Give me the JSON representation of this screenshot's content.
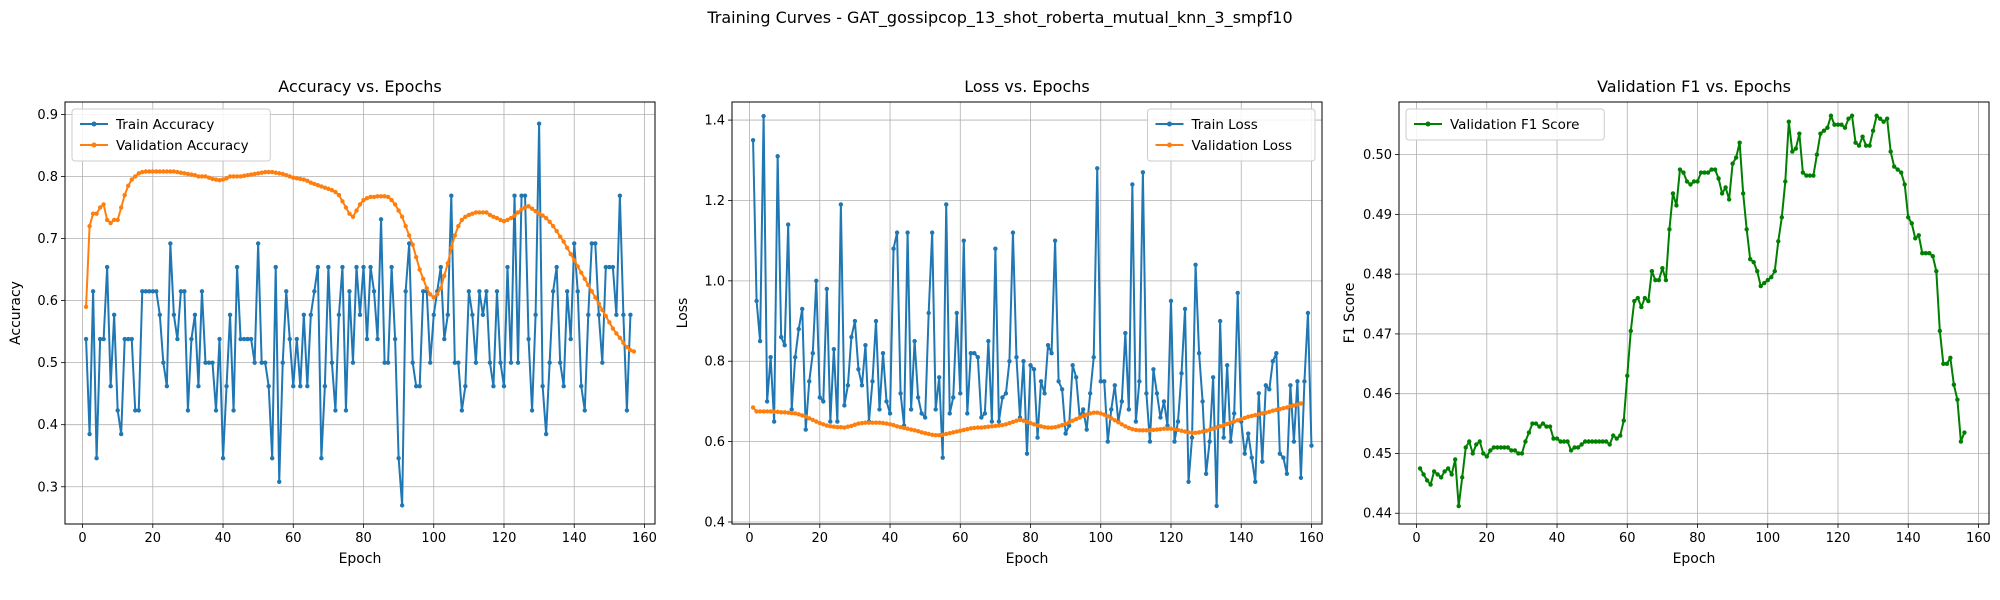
{
  "figure": {
    "title": "Training Curves - GAT_gossipcop_13_shot_roberta_mutual_knn_3_smpf10"
  },
  "colors": {
    "train": "#1f77b4",
    "val": "#ff7f0e",
    "f1": "#008000",
    "grid": "#b0b0b0"
  },
  "chart_data": [
    {
      "type": "line",
      "title": "Accuracy vs. Epochs",
      "xlabel": "Epoch",
      "ylabel": "Accuracy",
      "xlim": [
        -5,
        163
      ],
      "ylim": [
        0.24,
        0.92
      ],
      "xticks": [
        0,
        20,
        40,
        60,
        80,
        100,
        120,
        140,
        160
      ],
      "yticks": [
        0.3,
        0.4,
        0.5,
        0.6,
        0.7,
        0.8,
        0.9
      ],
      "ytick_decimals": 1,
      "grid": true,
      "legend": "top-left",
      "series": [
        {
          "name": "Train Accuracy",
          "color": "#1f77b4",
          "x_start": 1,
          "values": [
            0.538,
            0.385,
            0.615,
            0.346,
            0.538,
            0.538,
            0.654,
            0.462,
            0.577,
            0.423,
            0.385,
            0.538,
            0.538,
            0.538,
            0.423,
            0.423,
            0.615,
            0.615,
            0.615,
            0.615,
            0.615,
            0.577,
            0.5,
            0.462,
            0.692,
            0.577,
            0.538,
            0.615,
            0.615,
            0.423,
            0.538,
            0.577,
            0.462,
            0.615,
            0.5,
            0.5,
            0.5,
            0.423,
            0.538,
            0.346,
            0.462,
            0.577,
            0.423,
            0.654,
            0.538,
            0.538,
            0.538,
            0.538,
            0.5,
            0.692,
            0.5,
            0.5,
            0.462,
            0.346,
            0.654,
            0.308,
            0.5,
            0.615,
            0.538,
            0.462,
            0.538,
            0.462,
            0.577,
            0.462,
            0.577,
            0.615,
            0.654,
            0.346,
            0.462,
            0.654,
            0.5,
            0.423,
            0.577,
            0.654,
            0.423,
            0.615,
            0.5,
            0.654,
            0.577,
            0.654,
            0.538,
            0.654,
            0.615,
            0.538,
            0.731,
            0.5,
            0.5,
            0.654,
            0.538,
            0.346,
            0.27,
            0.615,
            0.692,
            0.5,
            0.462,
            0.462,
            0.615,
            0.615,
            0.5,
            0.577,
            0.615,
            0.654,
            0.538,
            0.577,
            0.769,
            0.5,
            0.5,
            0.423,
            0.462,
            0.615,
            0.577,
            0.5,
            0.615,
            0.577,
            0.615,
            0.5,
            0.462,
            0.615,
            0.5,
            0.462,
            0.654,
            0.5,
            0.769,
            0.5,
            0.769,
            0.769,
            0.538,
            0.423,
            0.577,
            0.885,
            0.462,
            0.385,
            0.5,
            0.615,
            0.654,
            0.5,
            0.462,
            0.615,
            0.538,
            0.692,
            0.615,
            0.462,
            0.423,
            0.577,
            0.692,
            0.692,
            0.577,
            0.5,
            0.654,
            0.654,
            0.654,
            0.577,
            0.769,
            0.577,
            0.423,
            0.577
          ]
        },
        {
          "name": "Validation Accuracy",
          "color": "#ff7f0e",
          "x_start": 1,
          "values": [
            0.59,
            0.72,
            0.74,
            0.74,
            0.75,
            0.755,
            0.73,
            0.725,
            0.73,
            0.73,
            0.75,
            0.77,
            0.785,
            0.795,
            0.8,
            0.805,
            0.807,
            0.808,
            0.808,
            0.808,
            0.808,
            0.808,
            0.808,
            0.808,
            0.808,
            0.808,
            0.807,
            0.806,
            0.805,
            0.804,
            0.803,
            0.802,
            0.8,
            0.8,
            0.8,
            0.798,
            0.796,
            0.795,
            0.794,
            0.795,
            0.797,
            0.8,
            0.8,
            0.8,
            0.8,
            0.801,
            0.802,
            0.803,
            0.804,
            0.805,
            0.806,
            0.807,
            0.807,
            0.807,
            0.806,
            0.805,
            0.804,
            0.802,
            0.8,
            0.798,
            0.797,
            0.796,
            0.795,
            0.793,
            0.79,
            0.788,
            0.786,
            0.784,
            0.782,
            0.78,
            0.778,
            0.775,
            0.77,
            0.76,
            0.75,
            0.74,
            0.735,
            0.745,
            0.755,
            0.762,
            0.765,
            0.767,
            0.767,
            0.768,
            0.768,
            0.768,
            0.767,
            0.762,
            0.755,
            0.745,
            0.735,
            0.72,
            0.705,
            0.69,
            0.67,
            0.65,
            0.635,
            0.62,
            0.61,
            0.605,
            0.61,
            0.62,
            0.64,
            0.66,
            0.685,
            0.705,
            0.72,
            0.73,
            0.735,
            0.738,
            0.74,
            0.742,
            0.742,
            0.742,
            0.742,
            0.738,
            0.735,
            0.733,
            0.73,
            0.728,
            0.73,
            0.733,
            0.737,
            0.742,
            0.747,
            0.75,
            0.752,
            0.748,
            0.744,
            0.74,
            0.737,
            0.733,
            0.727,
            0.72,
            0.712,
            0.703,
            0.695,
            0.685,
            0.675,
            0.665,
            0.655,
            0.645,
            0.635,
            0.625,
            0.615,
            0.605,
            0.595,
            0.585,
            0.575,
            0.565,
            0.555,
            0.547,
            0.54,
            0.532,
            0.525,
            0.52,
            0.518
          ]
        }
      ]
    },
    {
      "type": "line",
      "title": "Loss vs. Epochs",
      "xlabel": "Epoch",
      "ylabel": "Loss",
      "xlim": [
        -5,
        163
      ],
      "ylim": [
        0.395,
        1.445
      ],
      "xticks": [
        0,
        20,
        40,
        60,
        80,
        100,
        120,
        140,
        160
      ],
      "yticks": [
        0.4,
        0.6,
        0.8,
        1.0,
        1.2,
        1.4
      ],
      "ytick_decimals": 1,
      "grid": true,
      "legend": "top-right",
      "series": [
        {
          "name": "Train Loss",
          "color": "#1f77b4",
          "x_start": 1,
          "values": [
            1.35,
            0.95,
            0.85,
            1.41,
            0.7,
            0.81,
            0.65,
            1.31,
            0.86,
            0.84,
            1.14,
            0.68,
            0.81,
            0.88,
            0.93,
            0.63,
            0.75,
            0.82,
            1.0,
            0.71,
            0.7,
            0.98,
            0.65,
            0.83,
            0.65,
            1.19,
            0.69,
            0.74,
            0.86,
            0.9,
            0.78,
            0.74,
            0.84,
            0.65,
            0.75,
            0.9,
            0.68,
            0.82,
            0.7,
            0.67,
            1.08,
            1.12,
            0.72,
            0.64,
            1.12,
            0.68,
            0.85,
            0.71,
            0.67,
            0.66,
            0.92,
            1.12,
            0.68,
            0.76,
            0.56,
            1.19,
            0.67,
            0.71,
            0.92,
            0.72,
            1.1,
            0.67,
            0.82,
            0.82,
            0.81,
            0.66,
            0.67,
            0.85,
            0.65,
            1.08,
            0.65,
            0.71,
            0.72,
            0.8,
            1.12,
            0.81,
            0.66,
            0.8,
            0.57,
            0.79,
            0.78,
            0.61,
            0.75,
            0.72,
            0.84,
            0.82,
            1.1,
            0.75,
            0.73,
            0.62,
            0.64,
            0.79,
            0.76,
            0.66,
            0.68,
            0.63,
            0.72,
            0.81,
            1.28,
            0.75,
            0.75,
            0.6,
            0.68,
            0.74,
            0.65,
            0.7,
            0.87,
            0.68,
            1.24,
            0.65,
            0.75,
            1.27,
            0.72,
            0.6,
            0.78,
            0.72,
            0.66,
            0.7,
            0.64,
            0.95,
            0.6,
            0.65,
            0.77,
            0.93,
            0.5,
            0.61,
            1.04,
            0.82,
            0.7,
            0.52,
            0.6,
            0.76,
            0.44,
            0.9,
            0.61,
            0.79,
            0.6,
            0.67,
            0.97,
            0.65,
            0.57,
            0.62,
            0.56,
            0.5,
            0.72,
            0.55,
            0.74,
            0.73,
            0.8,
            0.82,
            0.57,
            0.56,
            0.52,
            0.74,
            0.6,
            0.75,
            0.51,
            0.75,
            0.92,
            0.59
          ]
        },
        {
          "name": "Validation Loss",
          "color": "#ff7f0e",
          "x_start": 1,
          "values": [
            0.685,
            0.675,
            0.675,
            0.675,
            0.675,
            0.675,
            0.674,
            0.674,
            0.673,
            0.673,
            0.672,
            0.671,
            0.67,
            0.668,
            0.665,
            0.662,
            0.658,
            0.654,
            0.65,
            0.646,
            0.643,
            0.64,
            0.638,
            0.637,
            0.636,
            0.636,
            0.635,
            0.637,
            0.639,
            0.642,
            0.645,
            0.646,
            0.647,
            0.647,
            0.647,
            0.647,
            0.647,
            0.646,
            0.645,
            0.643,
            0.641,
            0.638,
            0.636,
            0.634,
            0.632,
            0.63,
            0.628,
            0.626,
            0.623,
            0.621,
            0.619,
            0.617,
            0.616,
            0.616,
            0.617,
            0.619,
            0.621,
            0.623,
            0.625,
            0.627,
            0.629,
            0.631,
            0.633,
            0.634,
            0.635,
            0.635,
            0.636,
            0.637,
            0.638,
            0.639,
            0.64,
            0.641,
            0.643,
            0.646,
            0.649,
            0.652,
            0.654,
            0.652,
            0.649,
            0.646,
            0.643,
            0.64,
            0.638,
            0.636,
            0.635,
            0.635,
            0.636,
            0.638,
            0.641,
            0.644,
            0.648,
            0.652,
            0.656,
            0.66,
            0.664,
            0.667,
            0.67,
            0.672,
            0.672,
            0.67,
            0.667,
            0.663,
            0.658,
            0.653,
            0.648,
            0.643,
            0.638,
            0.634,
            0.631,
            0.629,
            0.628,
            0.628,
            0.628,
            0.628,
            0.629,
            0.63,
            0.631,
            0.632,
            0.632,
            0.632,
            0.631,
            0.629,
            0.627,
            0.625,
            0.623,
            0.622,
            0.622,
            0.623,
            0.625,
            0.627,
            0.629,
            0.632,
            0.635,
            0.638,
            0.641,
            0.644,
            0.647,
            0.65,
            0.653,
            0.656,
            0.659,
            0.662,
            0.664,
            0.666,
            0.668,
            0.67,
            0.672,
            0.674,
            0.677,
            0.679,
            0.681,
            0.683,
            0.685,
            0.688,
            0.69,
            0.692,
            0.695
          ]
        }
      ]
    },
    {
      "type": "line",
      "title": "Validation F1 vs. Epochs",
      "xlabel": "Epoch",
      "ylabel": "F1 Score",
      "xlim": [
        -5,
        163
      ],
      "ylim": [
        0.4382,
        0.5088
      ],
      "xticks": [
        0,
        20,
        40,
        60,
        80,
        100,
        120,
        140,
        160
      ],
      "yticks": [
        0.44,
        0.45,
        0.46,
        0.47,
        0.48,
        0.49,
        0.5
      ],
      "ytick_decimals": 2,
      "grid": true,
      "legend": "top-left",
      "series": [
        {
          "name": "Validation F1 Score",
          "color": "#008000",
          "x_start": 1,
          "values": [
            0.4475,
            0.4465,
            0.4455,
            0.4448,
            0.447,
            0.4465,
            0.446,
            0.447,
            0.4475,
            0.4465,
            0.449,
            0.4412,
            0.446,
            0.451,
            0.452,
            0.45,
            0.4515,
            0.452,
            0.45,
            0.4495,
            0.4505,
            0.451,
            0.451,
            0.451,
            0.451,
            0.451,
            0.4505,
            0.4505,
            0.45,
            0.45,
            0.452,
            0.4535,
            0.455,
            0.455,
            0.4545,
            0.455,
            0.4545,
            0.4545,
            0.4525,
            0.4525,
            0.452,
            0.452,
            0.452,
            0.4505,
            0.451,
            0.451,
            0.4515,
            0.452,
            0.452,
            0.452,
            0.452,
            0.452,
            0.452,
            0.452,
            0.4515,
            0.453,
            0.4525,
            0.453,
            0.4555,
            0.463,
            0.4705,
            0.4755,
            0.476,
            0.4745,
            0.476,
            0.4755,
            0.4805,
            0.479,
            0.479,
            0.481,
            0.479,
            0.4875,
            0.4935,
            0.4915,
            0.4975,
            0.497,
            0.4955,
            0.495,
            0.4955,
            0.4955,
            0.497,
            0.497,
            0.497,
            0.4975,
            0.4975,
            0.496,
            0.4935,
            0.4945,
            0.4925,
            0.4985,
            0.4995,
            0.502,
            0.4935,
            0.4875,
            0.4825,
            0.482,
            0.4805,
            0.478,
            0.4785,
            0.479,
            0.4795,
            0.4805,
            0.4855,
            0.4895,
            0.4955,
            0.5055,
            0.5005,
            0.501,
            0.5035,
            0.497,
            0.4965,
            0.4965,
            0.4965,
            0.5,
            0.5035,
            0.504,
            0.5045,
            0.5065,
            0.505,
            0.505,
            0.505,
            0.5045,
            0.506,
            0.5065,
            0.502,
            0.5015,
            0.503,
            0.5015,
            0.5015,
            0.504,
            0.5065,
            0.506,
            0.5055,
            0.506,
            0.5005,
            0.498,
            0.4975,
            0.497,
            0.495,
            0.4895,
            0.4885,
            0.486,
            0.4865,
            0.4835,
            0.4835,
            0.4835,
            0.483,
            0.4805,
            0.4705,
            0.465,
            0.465,
            0.466,
            0.4615,
            0.459,
            0.452,
            0.4535
          ]
        }
      ]
    }
  ]
}
